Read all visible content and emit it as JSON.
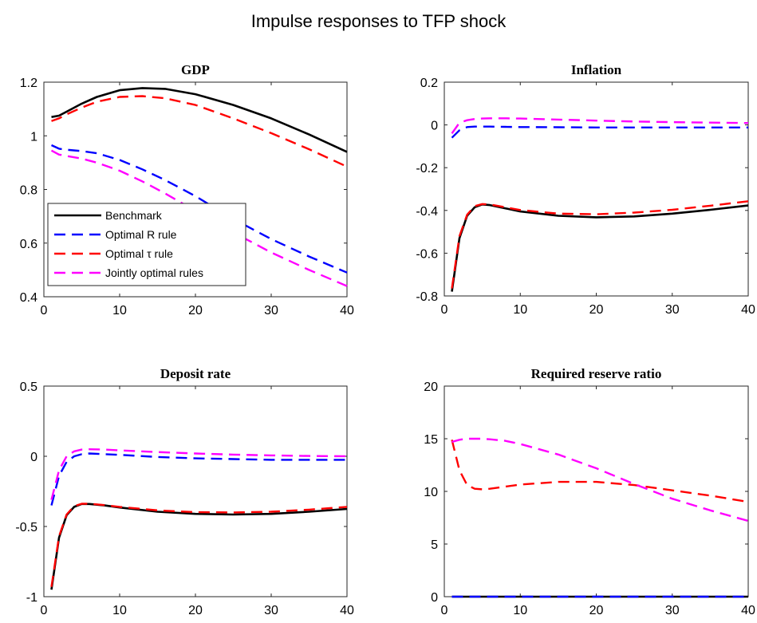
{
  "figure": {
    "title": "Impulse responses to TFP shock"
  },
  "legend": {
    "entries": [
      "Benchmark",
      "Optimal R rule",
      "Optimal τ rule",
      "Jointly optimal rules"
    ],
    "placement": "lower-left of GDP panel"
  },
  "colors": {
    "benchmark": "#000000",
    "optimal_r": "#0000ff",
    "optimal_tau": "#ff0000",
    "joint": "#ff00ff"
  },
  "chart_data": [
    {
      "type": "line",
      "title": "GDP",
      "xlim": [
        0,
        40
      ],
      "ylim": [
        0.4,
        1.2
      ],
      "xticks": [
        0,
        10,
        20,
        30,
        40
      ],
      "ytick_labels": [
        "0.4",
        "0.6",
        "0.8",
        "1",
        "1.2"
      ],
      "yticks": [
        0.4,
        0.6,
        0.8,
        1,
        1.2
      ],
      "x": [
        1,
        2,
        3,
        5,
        7,
        10,
        13,
        16,
        20,
        25,
        30,
        35,
        40
      ],
      "series": [
        {
          "name": "Benchmark",
          "style": "solid",
          "color": "#000000",
          "values": [
            1.07,
            1.075,
            1.09,
            1.12,
            1.145,
            1.17,
            1.178,
            1.175,
            1.155,
            1.115,
            1.065,
            1.005,
            0.94
          ]
        },
        {
          "name": "Optimal R rule",
          "style": "dashed",
          "color": "#0000ff",
          "values": [
            0.965,
            0.952,
            0.948,
            0.943,
            0.935,
            0.91,
            0.875,
            0.835,
            0.775,
            0.69,
            0.615,
            0.55,
            0.49
          ]
        },
        {
          "name": "Optimal τ rule",
          "style": "dashed",
          "color": "#ff0000",
          "values": [
            1.055,
            1.065,
            1.08,
            1.105,
            1.127,
            1.145,
            1.148,
            1.14,
            1.115,
            1.065,
            1.01,
            0.95,
            0.885
          ]
        },
        {
          "name": "Jointly optimal rules",
          "style": "dashed",
          "color": "#ff00ff",
          "values": [
            0.945,
            0.93,
            0.925,
            0.915,
            0.9,
            0.87,
            0.83,
            0.785,
            0.72,
            0.64,
            0.565,
            0.5,
            0.44
          ]
        }
      ]
    },
    {
      "type": "line",
      "title": "Inflation",
      "xlim": [
        0,
        40
      ],
      "ylim": [
        -0.8,
        0.2
      ],
      "xticks": [
        0,
        10,
        20,
        30,
        40
      ],
      "ytick_labels": [
        "-0.8",
        "-0.6",
        "-0.4",
        "-0.2",
        "0",
        "0.2"
      ],
      "yticks": [
        -0.8,
        -0.6,
        -0.4,
        -0.2,
        0,
        0.2
      ],
      "x": [
        1,
        2,
        3,
        4,
        5,
        6,
        8,
        10,
        15,
        20,
        25,
        30,
        35,
        40
      ],
      "series": [
        {
          "name": "Benchmark",
          "style": "solid",
          "color": "#000000",
          "values": [
            -0.78,
            -0.53,
            -0.425,
            -0.385,
            -0.372,
            -0.375,
            -0.39,
            -0.405,
            -0.425,
            -0.432,
            -0.428,
            -0.415,
            -0.397,
            -0.377
          ]
        },
        {
          "name": "Optimal R rule",
          "style": "dashed",
          "color": "#0000ff",
          "values": [
            -0.06,
            -0.025,
            -0.01,
            -0.008,
            -0.008,
            -0.008,
            -0.009,
            -0.01,
            -0.011,
            -0.012,
            -0.012,
            -0.012,
            -0.012,
            -0.012
          ]
        },
        {
          "name": "Optimal τ rule",
          "style": "dashed",
          "color": "#ff0000",
          "values": [
            -0.765,
            -0.52,
            -0.42,
            -0.38,
            -0.37,
            -0.372,
            -0.385,
            -0.398,
            -0.415,
            -0.418,
            -0.41,
            -0.397,
            -0.378,
            -0.357
          ]
        },
        {
          "name": "Jointly optimal rules",
          "style": "dashed",
          "color": "#ff00ff",
          "values": [
            -0.04,
            0.01,
            0.022,
            0.028,
            0.03,
            0.031,
            0.031,
            0.03,
            0.025,
            0.02,
            0.016,
            0.013,
            0.011,
            0.009
          ]
        }
      ]
    },
    {
      "type": "line",
      "title": "Deposit rate",
      "xlim": [
        0,
        40
      ],
      "ylim": [
        -1,
        0.5
      ],
      "xticks": [
        0,
        10,
        20,
        30,
        40
      ],
      "ytick_labels": [
        "-1",
        "-0.5",
        "0",
        "0.5"
      ],
      "yticks": [
        -1,
        -0.5,
        0,
        0.5
      ],
      "x": [
        1,
        2,
        3,
        4,
        5,
        6,
        8,
        10,
        15,
        20,
        25,
        30,
        35,
        40
      ],
      "series": [
        {
          "name": "Benchmark",
          "style": "solid",
          "color": "#000000",
          "values": [
            -0.95,
            -0.58,
            -0.42,
            -0.36,
            -0.34,
            -0.34,
            -0.35,
            -0.365,
            -0.395,
            -0.41,
            -0.415,
            -0.41,
            -0.395,
            -0.375
          ]
        },
        {
          "name": "Optimal R rule",
          "style": "dashed",
          "color": "#0000ff",
          "values": [
            -0.35,
            -0.14,
            -0.04,
            0.0,
            0.015,
            0.02,
            0.015,
            0.01,
            -0.005,
            -0.015,
            -0.02,
            -0.025,
            -0.025,
            -0.025
          ]
        },
        {
          "name": "Optimal τ rule",
          "style": "dashed",
          "color": "#ff0000",
          "values": [
            -0.93,
            -0.57,
            -0.415,
            -0.355,
            -0.338,
            -0.338,
            -0.348,
            -0.36,
            -0.385,
            -0.398,
            -0.4,
            -0.395,
            -0.38,
            -0.36
          ]
        },
        {
          "name": "Jointly optimal rules",
          "style": "dashed",
          "color": "#ff00ff",
          "values": [
            -0.31,
            -0.1,
            0.0,
            0.035,
            0.048,
            0.05,
            0.048,
            0.042,
            0.03,
            0.02,
            0.012,
            0.006,
            0.002,
            0.0
          ]
        }
      ]
    },
    {
      "type": "line",
      "title": "Required reserve ratio",
      "xlim": [
        0,
        40
      ],
      "ylim": [
        0,
        20
      ],
      "xticks": [
        0,
        10,
        20,
        30,
        40
      ],
      "ytick_labels": [
        "0",
        "5",
        "10",
        "15",
        "20"
      ],
      "yticks": [
        0,
        5,
        10,
        15,
        20
      ],
      "x": [
        1,
        2,
        3,
        4,
        5,
        6,
        8,
        10,
        15,
        20,
        25,
        30,
        35,
        40
      ],
      "series": [
        {
          "name": "Benchmark",
          "style": "solid",
          "color": "#000000",
          "values": [
            0,
            0,
            0,
            0,
            0,
            0,
            0,
            0,
            0,
            0,
            0,
            0,
            0,
            0
          ]
        },
        {
          "name": "Optimal R rule",
          "style": "dashed",
          "color": "#0000ff",
          "values": [
            0,
            0,
            0,
            0,
            0,
            0,
            0,
            0,
            0,
            0,
            0,
            0,
            0,
            0
          ]
        },
        {
          "name": "Optimal τ rule",
          "style": "dashed",
          "color": "#ff0000",
          "values": [
            14.9,
            12.0,
            10.6,
            10.25,
            10.2,
            10.25,
            10.45,
            10.65,
            10.9,
            10.9,
            10.6,
            10.1,
            9.6,
            9.0
          ]
        },
        {
          "name": "Jointly optimal rules",
          "style": "dashed",
          "color": "#ff00ff",
          "values": [
            14.7,
            14.9,
            15.0,
            15.0,
            15.0,
            14.95,
            14.8,
            14.5,
            13.5,
            12.2,
            10.7,
            9.3,
            8.2,
            7.2
          ]
        }
      ]
    }
  ]
}
